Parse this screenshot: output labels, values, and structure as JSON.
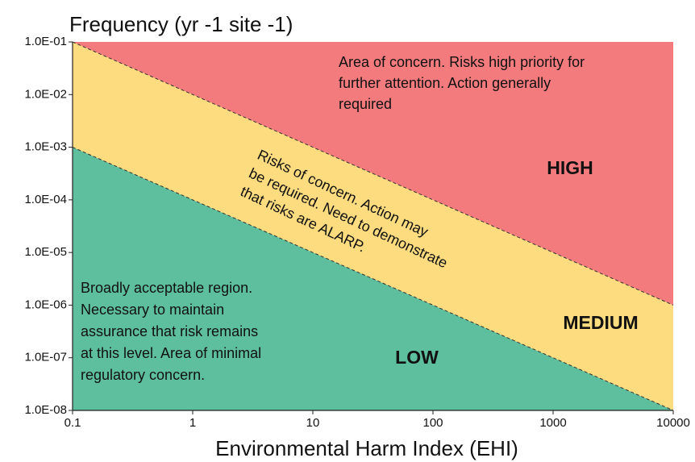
{
  "chart_data": {
    "type": "risk-matrix",
    "title": "Frequency (yr -1 site -1)",
    "x_label": "Environmental Harm Index (EHI)",
    "xscale": "log",
    "yscale": "log",
    "xlim": [
      0.1,
      10000
    ],
    "ylim": [
      1e-08,
      0.1
    ],
    "xticks": [
      0.1,
      1,
      10,
      100,
      1000,
      10000
    ],
    "yticks": [
      {
        "value": 1e-08,
        "label": "1.0E-08"
      },
      {
        "value": 1e-07,
        "label": "1.0E-07"
      },
      {
        "value": 1e-06,
        "label": "1.0E-06"
      },
      {
        "value": 1e-05,
        "label": "1.0E-05"
      },
      {
        "value": 0.0001,
        "label": "1.0E-04"
      },
      {
        "value": 0.001,
        "label": "1.0E-03"
      },
      {
        "value": 0.01,
        "label": "1.0E-02"
      },
      {
        "value": 0.1,
        "label": "1.0E-01"
      }
    ],
    "boundaries": [
      {
        "x": [
          0.1,
          10000
        ],
        "y": [
          0.1,
          1e-06
        ]
      },
      {
        "x": [
          0.1,
          10000
        ],
        "y": [
          0.001,
          1e-08
        ]
      }
    ],
    "regions": [
      {
        "label": "HIGH",
        "color": "#f47b7d",
        "text": [
          "Area of concern. Risks high priority for",
          "further attention. Action generally",
          "required"
        ]
      },
      {
        "label": "MEDIUM",
        "color": "#fddc7f",
        "text": [
          "Risks of concern. Action may",
          "be required. Need to demonstrate",
          "that risks are ALARP."
        ]
      },
      {
        "label": "LOW",
        "color": "#5ebf9e",
        "text": [
          "Broadly acceptable region.",
          "Necessary to maintain",
          "assurance that risk remains",
          "at this level. Area of minimal",
          "regulatory concern."
        ]
      }
    ]
  }
}
